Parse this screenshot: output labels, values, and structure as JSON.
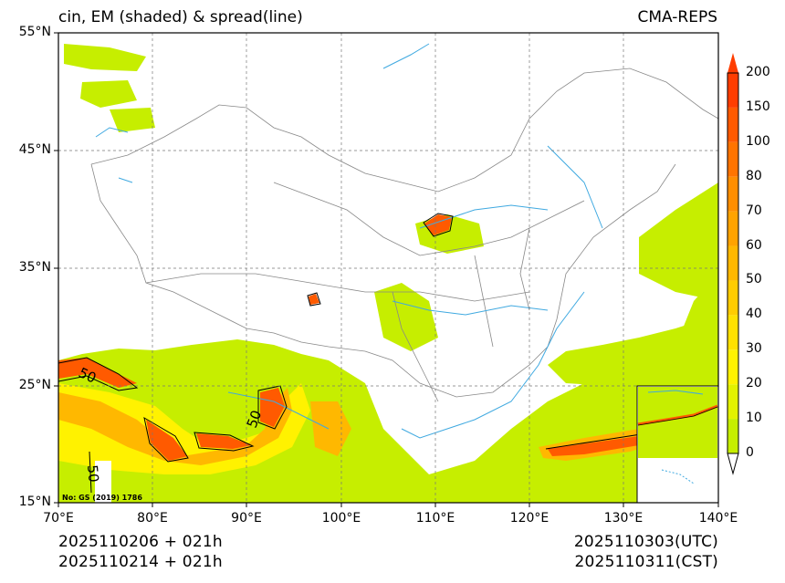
{
  "title_left": "cin, EM (shaded) & spread(line)",
  "title_right": "CMA-REPS",
  "y_ticks": [
    "55°N",
    "45°N",
    "35°N",
    "25°N",
    "15°N"
  ],
  "x_ticks": [
    "70°E",
    "80°E",
    "90°E",
    "100°E",
    "110°E",
    "120°E",
    "130°E",
    "140°E"
  ],
  "footer": {
    "init_utc": "2025110206  +  021h",
    "init_cst": "2025110214  +  021h",
    "valid_utc": "2025110303(UTC)",
    "valid_cst": "2025110311(CST)"
  },
  "map_review_number": "No: GS (2019) 1786",
  "contour_label": "50",
  "colorbar": {
    "levels": [
      "0",
      "10",
      "20",
      "30",
      "40",
      "50",
      "60",
      "70",
      "80",
      "100",
      "150",
      "200"
    ],
    "colors": [
      "#c6ee00",
      "#e3f200",
      "#fff200",
      "#ffe100",
      "#ffcc00",
      "#ffb800",
      "#ffa300",
      "#ff8e00",
      "#ff7400",
      "#ff5a00",
      "#ff3d00"
    ],
    "extend_high_color": "#ff3d00",
    "extend_low_color": "#ffffff"
  }
}
